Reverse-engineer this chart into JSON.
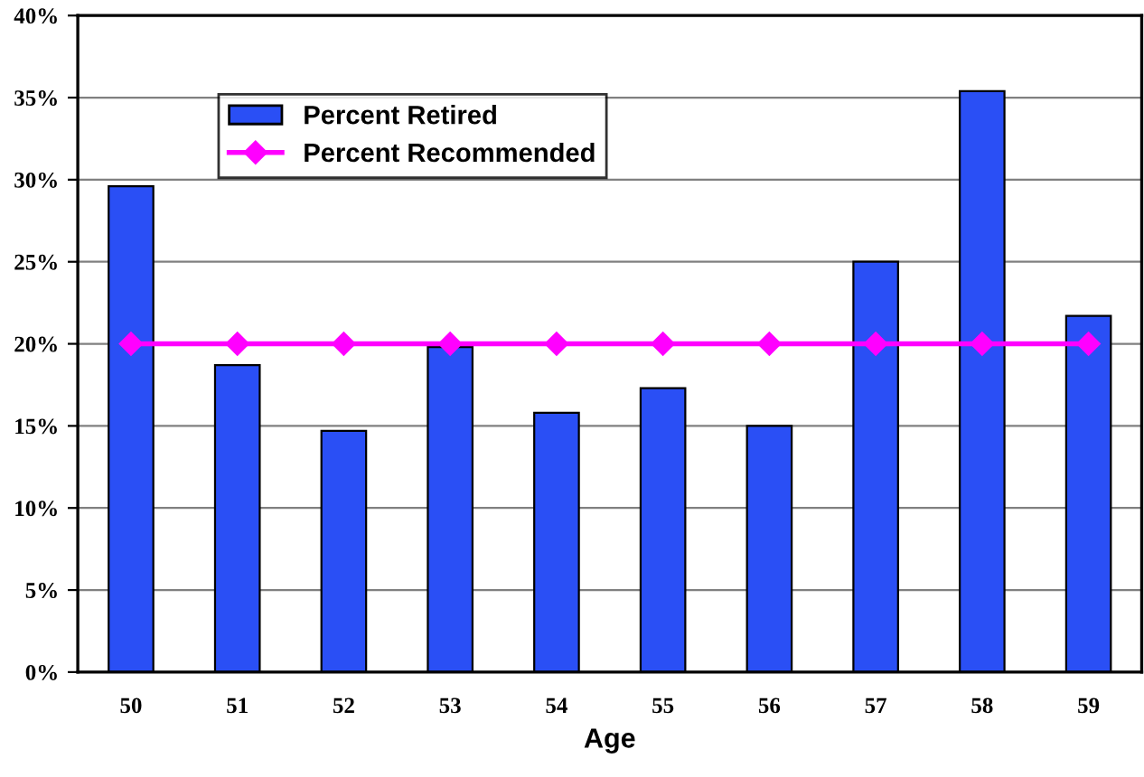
{
  "chart_data": {
    "type": "bar",
    "xlabel": "Age",
    "categories": [
      "50",
      "51",
      "52",
      "53",
      "54",
      "55",
      "56",
      "57",
      "58",
      "59"
    ],
    "series": [
      {
        "name": "Percent Retired",
        "color": "#2a4ff5",
        "values": [
          29.6,
          18.7,
          14.7,
          19.8,
          15.8,
          17.3,
          15.0,
          25.0,
          35.4,
          21.7
        ]
      },
      {
        "name": "Percent Recommended",
        "type": "line",
        "color": "#ff00ff",
        "marker": "diamond",
        "values": [
          20,
          20,
          20,
          20,
          20,
          20,
          20,
          20,
          20,
          20
        ]
      }
    ],
    "ylim": [
      0,
      40
    ],
    "yticks": [
      {
        "value": 0,
        "label": "0%"
      },
      {
        "value": 5,
        "label": "5%"
      },
      {
        "value": 10,
        "label": "10%"
      },
      {
        "value": 15,
        "label": "15%"
      },
      {
        "value": 20,
        "label": "20%"
      },
      {
        "value": 25,
        "label": "25%"
      },
      {
        "value": 30,
        "label": "30%"
      },
      {
        "value": 35,
        "label": "35%"
      },
      {
        "value": 40,
        "label": "40%"
      }
    ],
    "grid": "y",
    "legend": "top left"
  }
}
